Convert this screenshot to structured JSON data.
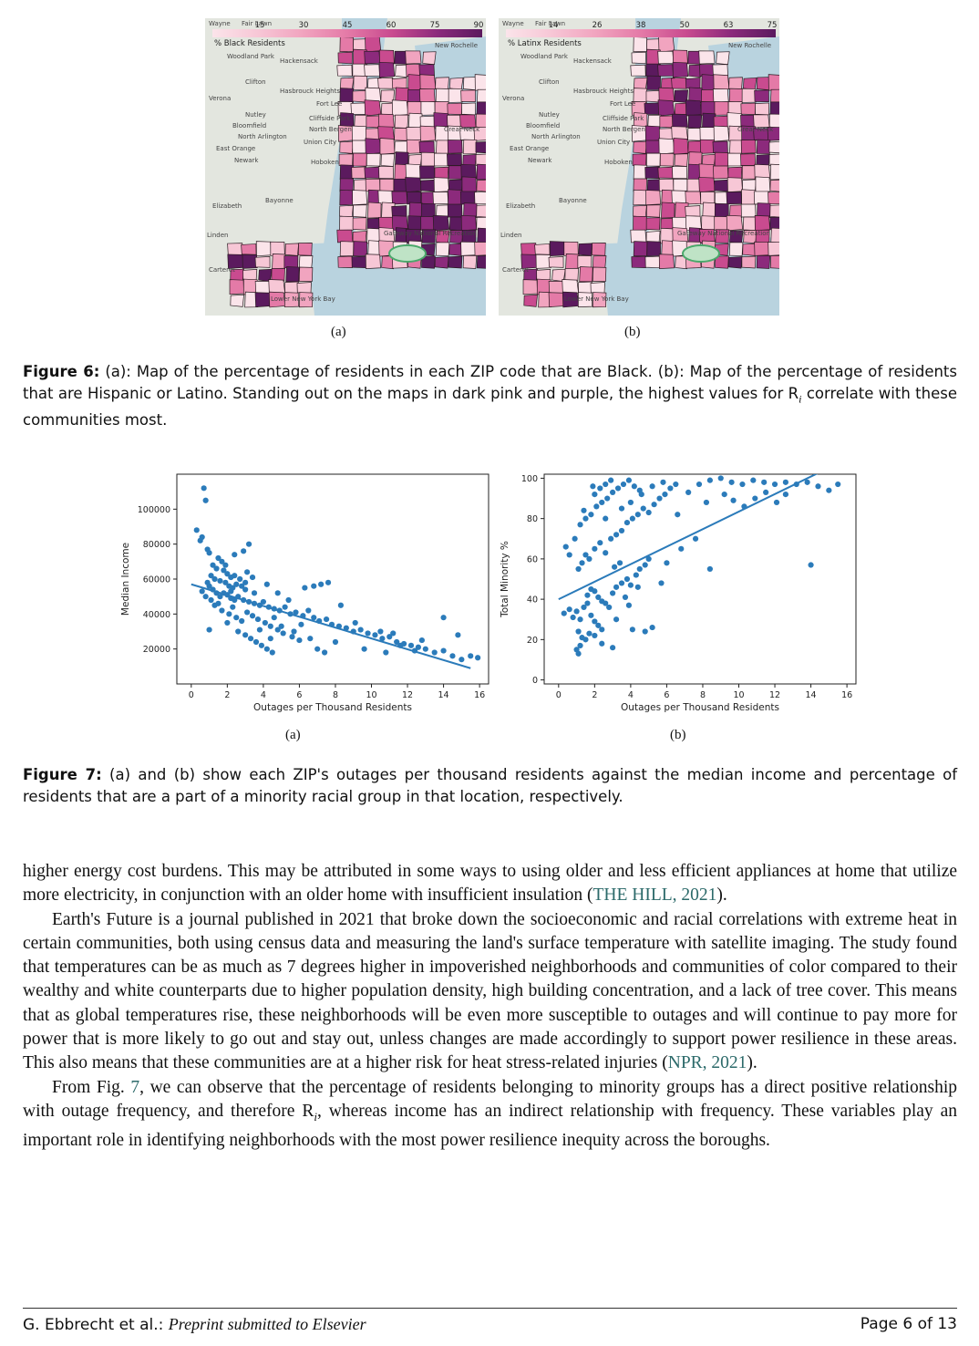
{
  "figure6": {
    "map_a": {
      "legend_title": "% Black Residents",
      "legend_ticks": [
        "15",
        "30",
        "45",
        "60",
        "75",
        "90"
      ],
      "place_labels": [
        "Wayne",
        "Fair Lawn",
        "Woodland Park",
        "Hackensack",
        "New Rochelle",
        "Clifton",
        "Hasbrouck Heights",
        "Fort Lee",
        "Verona",
        "Nutley",
        "Bloomfield",
        "Cliffside Park",
        "North Bergen",
        "North Arlington",
        "Great Neck",
        "East Orange",
        "Union City",
        "Hoboken",
        "Newark",
        "Elizabeth",
        "Bayonne",
        "Linden",
        "Carteret",
        "Lower New York Bay",
        "Gateway National Recreation"
      ]
    },
    "map_b": {
      "legend_title": "% Latinx Residents",
      "legend_ticks": [
        "14",
        "26",
        "38",
        "50",
        "63",
        "75"
      ],
      "place_labels": [
        "Wayne",
        "Fair Lawn",
        "Woodland Park",
        "Hackensack",
        "New Rochelle",
        "Clifton",
        "Hasbrouck Heights",
        "Fort Lee",
        "Verona",
        "Nutley",
        "Bloomfield",
        "Cliffside Park",
        "North Bergen",
        "North Arlington",
        "Great Neck",
        "East Orange",
        "Union City",
        "Hoboken",
        "Newark",
        "Elizabeth",
        "Bayonne",
        "Linden",
        "Carteret",
        "Lower New York Bay",
        "Gateway National Recreation"
      ]
    },
    "sub_a": "(a)",
    "sub_b": "(b)",
    "caption_label": "Figure 6:",
    "caption_text": " (a): Map of the percentage of residents in each ZIP code that are Black. (b): Map of the percentage of residents that are Hispanic or Latino. Standing out on the maps in dark pink and purple, the highest values for R",
    "caption_sub": "i",
    "caption_tail": " correlate with these communities most."
  },
  "figure7": {
    "sub_a": "(a)",
    "sub_b": "(b)",
    "caption_label": "Figure 7:",
    "caption_text": " (a) and (b) show each ZIP's outages per thousand residents against the median income and percentage of residents that are a part of a minority racial group in that location, respectively."
  },
  "chart_data": [
    {
      "type": "scatter",
      "title": "",
      "xlabel": "Outages per Thousand Residents",
      "ylabel": "Median Income",
      "xlim": [
        -0.8,
        16.5
      ],
      "ylim": [
        0,
        120000
      ],
      "xticks": [
        0,
        2,
        4,
        6,
        8,
        10,
        12,
        14,
        16
      ],
      "yticks": [
        20000,
        40000,
        60000,
        80000,
        100000
      ],
      "color": "#2b7bba",
      "trendline": [
        [
          0,
          57000
        ],
        [
          15.5,
          9000
        ]
      ],
      "points": [
        [
          0.7,
          112000
        ],
        [
          0.8,
          105000
        ],
        [
          0.3,
          88000
        ],
        [
          0.6,
          84000
        ],
        [
          0.5,
          82000
        ],
        [
          0.9,
          77000
        ],
        [
          1.0,
          75000
        ],
        [
          1.5,
          72000
        ],
        [
          1.7,
          70000
        ],
        [
          1.2,
          68000
        ],
        [
          1.4,
          66000
        ],
        [
          1.8,
          65000
        ],
        [
          2.0,
          63000
        ],
        [
          2.2,
          61000
        ],
        [
          2.4,
          62000
        ],
        [
          1.1,
          62000
        ],
        [
          1.3,
          60000
        ],
        [
          1.6,
          59000
        ],
        [
          1.9,
          58000
        ],
        [
          2.1,
          56000
        ],
        [
          2.3,
          55000
        ],
        [
          2.5,
          57000
        ],
        [
          2.8,
          56000
        ],
        [
          3.0,
          54000
        ],
        [
          0.9,
          58000
        ],
        [
          1.0,
          56000
        ],
        [
          1.2,
          54000
        ],
        [
          1.4,
          52000
        ],
        [
          1.6,
          50000
        ],
        [
          1.8,
          52000
        ],
        [
          2.0,
          51000
        ],
        [
          2.2,
          49000
        ],
        [
          2.4,
          48000
        ],
        [
          2.6,
          50000
        ],
        [
          2.9,
          48000
        ],
        [
          3.2,
          47000
        ],
        [
          3.5,
          46000
        ],
        [
          3.8,
          45000
        ],
        [
          4.0,
          47000
        ],
        [
          4.3,
          44000
        ],
        [
          4.6,
          43000
        ],
        [
          4.9,
          42000
        ],
        [
          5.2,
          44000
        ],
        [
          5.5,
          40000
        ],
        [
          5.8,
          41000
        ],
        [
          6.2,
          39000
        ],
        [
          6.5,
          42000
        ],
        [
          6.8,
          38000
        ],
        [
          7.1,
          36000
        ],
        [
          7.5,
          37000
        ],
        [
          7.8,
          34000
        ],
        [
          8.2,
          33000
        ],
        [
          8.6,
          32000
        ],
        [
          9.0,
          30000
        ],
        [
          9.4,
          31000
        ],
        [
          9.8,
          29000
        ],
        [
          10.2,
          28000
        ],
        [
          10.6,
          26000
        ],
        [
          11.0,
          27000
        ],
        [
          11.4,
          24000
        ],
        [
          11.8,
          23000
        ],
        [
          12.2,
          22000
        ],
        [
          12.6,
          21000
        ],
        [
          13.0,
          20000
        ],
        [
          13.5,
          18000
        ],
        [
          14.0,
          19000
        ],
        [
          14.5,
          16000
        ],
        [
          15.0,
          14000
        ],
        [
          15.5,
          16000
        ],
        [
          1.7,
          42000
        ],
        [
          2.1,
          40000
        ],
        [
          2.5,
          38000
        ],
        [
          2.8,
          36000
        ],
        [
          3.1,
          41000
        ],
        [
          3.4,
          39000
        ],
        [
          3.7,
          37000
        ],
        [
          4.1,
          35000
        ],
        [
          4.4,
          33000
        ],
        [
          4.8,
          31000
        ],
        [
          5.1,
          29000
        ],
        [
          5.6,
          27000
        ],
        [
          6.0,
          25000
        ],
        [
          2.6,
          30000
        ],
        [
          3.0,
          28000
        ],
        [
          3.3,
          26000
        ],
        [
          3.6,
          24000
        ],
        [
          3.9,
          22000
        ],
        [
          4.2,
          20000
        ],
        [
          4.5,
          18000
        ],
        [
          2.3,
          44000
        ],
        [
          1.5,
          46000
        ],
        [
          1.1,
          48000
        ],
        [
          0.8,
          50000
        ],
        [
          0.6,
          53000
        ],
        [
          2.7,
          60000
        ],
        [
          3.1,
          64000
        ],
        [
          3.4,
          61000
        ],
        [
          3.0,
          58000
        ],
        [
          1.9,
          68000
        ],
        [
          2.4,
          74000
        ],
        [
          3.2,
          80000
        ],
        [
          2.9,
          76000
        ],
        [
          4.2,
          57000
        ],
        [
          4.8,
          52000
        ],
        [
          5.4,
          48000
        ],
        [
          6.3,
          55000
        ],
        [
          6.8,
          56000
        ],
        [
          7.2,
          57000
        ],
        [
          7.6,
          58000
        ],
        [
          8.3,
          45000
        ],
        [
          9.1,
          35000
        ],
        [
          10.5,
          30000
        ],
        [
          11.2,
          29000
        ],
        [
          12.8,
          25000
        ],
        [
          14.0,
          38000
        ],
        [
          14.8,
          28000
        ],
        [
          15.9,
          15000
        ],
        [
          7.0,
          20000
        ],
        [
          7.4,
          18000
        ],
        [
          8.0,
          24000
        ],
        [
          9.6,
          20000
        ],
        [
          10.8,
          18000
        ],
        [
          11.6,
          22000
        ],
        [
          12.4,
          19000
        ],
        [
          6.6,
          26000
        ],
        [
          5.0,
          33000
        ],
        [
          4.6,
          38000
        ],
        [
          3.5,
          52000
        ],
        [
          2.2,
          53000
        ],
        [
          1.3,
          45000
        ],
        [
          2.0,
          35000
        ],
        [
          1.0,
          31000
        ],
        [
          3.8,
          31000
        ],
        [
          4.4,
          26000
        ],
        [
          5.7,
          30000
        ],
        [
          6.1,
          34000
        ]
      ]
    },
    {
      "type": "scatter",
      "title": "",
      "xlabel": "Outages per Thousand Residents",
      "ylabel": "Total Minority %",
      "xlim": [
        -0.8,
        16.5
      ],
      "ylim": [
        -2,
        102
      ],
      "xticks": [
        0,
        2,
        4,
        6,
        8,
        10,
        12,
        14,
        16
      ],
      "yticks": [
        0,
        20,
        40,
        60,
        80,
        100
      ],
      "color": "#2b7bba",
      "trendline": [
        [
          0,
          40
        ],
        [
          14.5,
          103
        ]
      ],
      "points": [
        [
          0.3,
          33
        ],
        [
          0.6,
          35
        ],
        [
          0.8,
          31
        ],
        [
          1.0,
          34
        ],
        [
          1.2,
          30
        ],
        [
          1.4,
          36
        ],
        [
          1.6,
          38
        ],
        [
          1.8,
          32
        ],
        [
          2.0,
          29
        ],
        [
          2.2,
          27
        ],
        [
          1.1,
          24
        ],
        [
          1.3,
          21
        ],
        [
          1.0,
          15
        ],
        [
          1.1,
          13
        ],
        [
          1.2,
          17
        ],
        [
          1.5,
          20
        ],
        [
          1.7,
          23
        ],
        [
          2.0,
          22
        ],
        [
          2.4,
          18
        ],
        [
          3.0,
          16
        ],
        [
          1.6,
          42
        ],
        [
          1.8,
          45
        ],
        [
          2.0,
          44
        ],
        [
          2.2,
          41
        ],
        [
          2.4,
          39
        ],
        [
          2.6,
          38
        ],
        [
          2.8,
          36
        ],
        [
          3.0,
          43
        ],
        [
          3.2,
          46
        ],
        [
          3.5,
          48
        ],
        [
          3.8,
          50
        ],
        [
          4.0,
          47
        ],
        [
          4.3,
          52
        ],
        [
          4.5,
          55
        ],
        [
          4.8,
          57
        ],
        [
          5.0,
          60
        ],
        [
          1.1,
          55
        ],
        [
          1.3,
          58
        ],
        [
          1.5,
          62
        ],
        [
          1.7,
          60
        ],
        [
          2.0,
          65
        ],
        [
          2.3,
          68
        ],
        [
          2.6,
          63
        ],
        [
          2.9,
          70
        ],
        [
          3.2,
          72
        ],
        [
          3.5,
          74
        ],
        [
          3.8,
          78
        ],
        [
          4.1,
          80
        ],
        [
          4.4,
          82
        ],
        [
          4.7,
          85
        ],
        [
          5.0,
          83
        ],
        [
          5.3,
          87
        ],
        [
          5.6,
          90
        ],
        [
          5.9,
          92
        ],
        [
          6.2,
          95
        ],
        [
          6.5,
          97
        ],
        [
          1.2,
          77
        ],
        [
          1.5,
          80
        ],
        [
          1.8,
          82
        ],
        [
          2.1,
          86
        ],
        [
          2.4,
          88
        ],
        [
          2.7,
          90
        ],
        [
          3.0,
          93
        ],
        [
          3.3,
          95
        ],
        [
          3.6,
          97
        ],
        [
          3.9,
          99
        ],
        [
          4.2,
          96
        ],
        [
          4.5,
          94
        ],
        [
          2.0,
          92
        ],
        [
          2.3,
          95
        ],
        [
          2.6,
          97
        ],
        [
          2.9,
          99
        ],
        [
          3.5,
          85
        ],
        [
          4.0,
          88
        ],
        [
          4.6,
          92
        ],
        [
          5.2,
          96
        ],
        [
          5.8,
          98
        ],
        [
          6.6,
          82
        ],
        [
          7.2,
          93
        ],
        [
          7.8,
          97
        ],
        [
          8.4,
          99
        ],
        [
          9.0,
          100
        ],
        [
          9.6,
          98
        ],
        [
          10.2,
          97
        ],
        [
          10.8,
          99
        ],
        [
          11.4,
          98
        ],
        [
          12.0,
          97
        ],
        [
          12.6,
          98
        ],
        [
          13.2,
          97
        ],
        [
          13.8,
          98
        ],
        [
          14.4,
          96
        ],
        [
          15.0,
          94
        ],
        [
          15.5,
          97
        ],
        [
          14.0,
          57
        ],
        [
          9.2,
          92
        ],
        [
          9.7,
          89
        ],
        [
          10.3,
          86
        ],
        [
          10.9,
          90
        ],
        [
          11.5,
          93
        ],
        [
          12.1,
          88
        ],
        [
          12.6,
          92
        ],
        [
          8.2,
          88
        ],
        [
          7.6,
          70
        ],
        [
          6.0,
          58
        ],
        [
          5.7,
          48
        ],
        [
          3.9,
          37
        ],
        [
          3.2,
          30
        ],
        [
          2.4,
          25
        ],
        [
          4.1,
          25
        ],
        [
          4.8,
          24
        ],
        [
          5.2,
          26
        ],
        [
          4.4,
          46
        ],
        [
          3.7,
          41
        ],
        [
          0.4,
          66
        ],
        [
          0.6,
          62
        ],
        [
          0.9,
          70
        ],
        [
          1.4,
          84
        ],
        [
          1.9,
          96
        ],
        [
          2.6,
          80
        ],
        [
          3.1,
          56
        ],
        [
          3.4,
          58
        ],
        [
          6.8,
          65
        ],
        [
          8.4,
          55
        ]
      ]
    }
  ],
  "body": {
    "p1": "higher energy cost burdens. This may be attributed in some ways to using older and less efficient appliances at home that utilize more electricity, in conjunction with an older home with insufficient insulation (",
    "p1_cite": "THE HILL, 2021",
    "p1_end": ").",
    "p2": "Earth's Future is a journal published in 2021 that broke down the socioeconomic and racial correlations with extreme heat in certain communities, both using census data and measuring the land's surface temperature with satellite imaging. The study found that temperatures can be as much as 7 degrees higher in impoverished neighborhoods and communities of color compared to their wealthy and white counterparts due to higher population density, high building concentration, and a lack of tree cover. This means that as global temperatures rise, these neighborhoods will be even more susceptible to outages and will continue to pay more for power that is more likely to go out and stay out, unless changes are made accordingly to support power resilience in these areas. This also means that these communities are at a higher risk for heat stress-related injuries (",
    "p2_cite": "NPR, 2021",
    "p2_end": ").",
    "p3_a": "From Fig. ",
    "p3_fig": "7",
    "p3_b": ", we can observe that the percentage of residents belonging to minority groups has a direct positive relationship with outage frequency, and therefore R",
    "p3_sub": "i",
    "p3_c": ", whereas income has an indirect relationship with frequency. These variables play an important role in identifying neighborhoods with the most power resilience inequity across the boroughs."
  },
  "footer": {
    "authors": "G. Ebbrecht et al.: ",
    "journal": "Preprint submitted to Elsevier",
    "page": "Page 6 of 13"
  }
}
